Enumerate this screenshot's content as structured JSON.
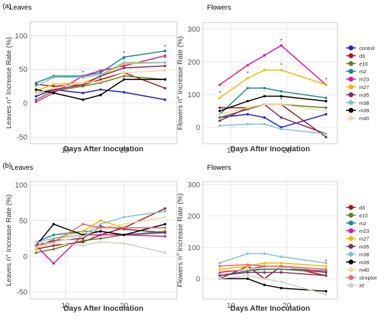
{
  "figure": {
    "label_a": "(a)",
    "label_b": "(b)",
    "significance_mark": "*"
  },
  "chart_data": [
    {
      "id": "a_leaves",
      "type": "line",
      "title": "Leaves",
      "xlabel": "Days After Inoculation",
      "ylabel": "Leaves n° Increase Rate (%)",
      "xlim": [
        4,
        29
      ],
      "ylim": [
        -60,
        120
      ],
      "xticks": [
        10,
        20
      ],
      "yticks": [
        -50,
        0,
        50,
        100
      ],
      "grid": true,
      "series": [
        {
          "name": "control",
          "color": "#1f1fd6",
          "x": [
            5,
            8,
            13,
            16,
            20,
            27
          ],
          "y": [
            10,
            20,
            15,
            20,
            16,
            5
          ]
        },
        {
          "name": "d3",
          "color": "#a01c1c",
          "x": [
            5,
            8,
            13,
            16,
            20,
            27
          ],
          "y": [
            28,
            25,
            27,
            35,
            45,
            22
          ]
        },
        {
          "name": "e10",
          "color": "#6b7a2a",
          "x": [
            5,
            8,
            13,
            16,
            20,
            27
          ],
          "y": [
            5,
            18,
            25,
            30,
            40,
            35
          ]
        },
        {
          "name": "m2",
          "color": "#1b8a8a",
          "x": [
            5,
            8,
            13,
            16,
            20,
            27
          ],
          "y": [
            30,
            40,
            40,
            45,
            68,
            77
          ]
        },
        {
          "name": "m23",
          "color": "#e0189a",
          "x": [
            5,
            8,
            13,
            16,
            20,
            27
          ],
          "y": [
            2,
            15,
            40,
            48,
            55,
            70
          ]
        },
        {
          "name": "m27",
          "color": "#f5b800",
          "x": [
            5,
            8,
            13,
            16,
            20,
            27
          ],
          "y": [
            18,
            28,
            30,
            40,
            58,
            60
          ]
        },
        {
          "name": "m35",
          "color": "#8b2a5a",
          "x": [
            5,
            8,
            13,
            16,
            20,
            27
          ],
          "y": [
            15,
            20,
            27,
            40,
            52,
            55
          ]
        },
        {
          "name": "m38",
          "color": "#7fc4d4",
          "x": [
            5,
            8,
            13,
            16,
            20,
            27
          ],
          "y": [
            25,
            38,
            38,
            42,
            60,
            60
          ]
        },
        {
          "name": "m39",
          "color": "#000000",
          "x": [
            5,
            8,
            13,
            16,
            20,
            27
          ],
          "y": [
            20,
            15,
            5,
            12,
            35,
            35
          ]
        },
        {
          "name": "m40",
          "color": "#f4d6a4",
          "x": [
            5,
            8,
            13,
            16,
            20,
            27
          ],
          "y": [
            15,
            22,
            30,
            32,
            45,
            48
          ]
        }
      ],
      "annotations": [
        {
          "text": "*",
          "x": 13,
          "y": 45
        },
        {
          "text": "*",
          "x": 20,
          "y": 74
        },
        {
          "text": "*",
          "x": 20,
          "y": 64
        },
        {
          "text": "*",
          "x": 27,
          "y": 83
        },
        {
          "text": "*",
          "x": 27,
          "y": 76
        },
        {
          "text": "*",
          "x": 27,
          "y": 66
        }
      ]
    },
    {
      "id": "a_flowers",
      "type": "line",
      "title": "Flowers",
      "xlabel": "Days After Inoculation",
      "ylabel": "Flowers n° Increase Rate (%)",
      "xlim": [
        5,
        29
      ],
      "ylim": [
        -50,
        320
      ],
      "xticks": [
        10,
        20
      ],
      "yticks": [
        0,
        100,
        200,
        300
      ],
      "grid": true,
      "series": [
        {
          "name": "control",
          "color": "#1f1fd6",
          "x": [
            8,
            13,
            16,
            19,
            27
          ],
          "y": [
            30,
            40,
            30,
            0,
            40
          ]
        },
        {
          "name": "d3",
          "color": "#a01c1c",
          "x": [
            8,
            13,
            16,
            19,
            27
          ],
          "y": [
            60,
            60,
            70,
            70,
            -30
          ]
        },
        {
          "name": "e10",
          "color": "#6b7a2a",
          "x": [
            8,
            13,
            16,
            19,
            27
          ],
          "y": [
            30,
            55,
            70,
            70,
            60
          ]
        },
        {
          "name": "m2",
          "color": "#1b8a8a",
          "x": [
            8,
            13,
            16,
            19,
            27
          ],
          "y": [
            40,
            120,
            120,
            110,
            90
          ]
        },
        {
          "name": "m23",
          "color": "#e0189a",
          "x": [
            8,
            13,
            16,
            19,
            27
          ],
          "y": [
            130,
            190,
            220,
            250,
            130
          ]
        },
        {
          "name": "m27",
          "color": "#f5b800",
          "x": [
            8,
            13,
            16,
            19,
            27
          ],
          "y": [
            90,
            150,
            175,
            175,
            130
          ]
        },
        {
          "name": "m35",
          "color": "#8b2a5a",
          "x": [
            8,
            13,
            16,
            19,
            27
          ],
          "y": [
            20,
            60,
            70,
            30,
            -20
          ]
        },
        {
          "name": "m38",
          "color": "#7fc4d4",
          "x": [
            8,
            13,
            16,
            19,
            27
          ],
          "y": [
            5,
            10,
            10,
            -5,
            -20
          ]
        },
        {
          "name": "m39",
          "color": "#000000",
          "x": [
            8,
            13,
            16,
            19,
            27
          ],
          "y": [
            50,
            80,
            95,
            95,
            80
          ]
        },
        {
          "name": "m40",
          "color": "#f4d6a4",
          "x": [
            8,
            13,
            16,
            19,
            27
          ],
          "y": [
            40,
            60,
            70,
            70,
            50
          ]
        }
      ],
      "annotations": [
        {
          "text": "*",
          "x": 8,
          "y": 105
        },
        {
          "text": "*",
          "x": 13,
          "y": 165
        },
        {
          "text": "*",
          "x": 19,
          "y": 265
        },
        {
          "text": "*",
          "x": 19,
          "y": 190
        },
        {
          "text": "*",
          "x": 19,
          "y": 85
        },
        {
          "text": "*",
          "x": 27,
          "y": 145
        }
      ]
    },
    {
      "id": "b_leaves",
      "type": "line",
      "title": "Leaves",
      "xlabel": "Days After Inoculation",
      "ylabel": "Leaves n° Increase Rate (%)",
      "xlim": [
        4,
        29
      ],
      "ylim": [
        -60,
        105
      ],
      "xticks": [
        10,
        20
      ],
      "yticks": [
        -50,
        0,
        50,
        100
      ],
      "grid": true,
      "series": [
        {
          "name": "d3",
          "color": "#a01c1c",
          "x": [
            5,
            8,
            13,
            16,
            20,
            27
          ],
          "y": [
            10,
            15,
            20,
            30,
            40,
            67
          ]
        },
        {
          "name": "e10",
          "color": "#6b7a2a",
          "x": [
            5,
            8,
            13,
            16,
            20,
            27
          ],
          "y": [
            5,
            10,
            22,
            25,
            30,
            35
          ]
        },
        {
          "name": "m2",
          "color": "#1b8a8a",
          "x": [
            5,
            8,
            13,
            16,
            20,
            27
          ],
          "y": [
            20,
            30,
            35,
            35,
            30,
            33
          ]
        },
        {
          "name": "m23",
          "color": "#e0189a",
          "x": [
            5,
            8,
            13,
            16,
            20,
            27
          ],
          "y": [
            15,
            -10,
            30,
            30,
            30,
            28
          ]
        },
        {
          "name": "m27",
          "color": "#f5b800",
          "x": [
            5,
            8,
            13,
            16,
            20,
            27
          ],
          "y": [
            10,
            25,
            35,
            50,
            40,
            40
          ]
        },
        {
          "name": "m35",
          "color": "#8b2a5a",
          "x": [
            5,
            8,
            13,
            16,
            20,
            27
          ],
          "y": [
            15,
            22,
            25,
            42,
            38,
            33
          ]
        },
        {
          "name": "m38",
          "color": "#7fc4d4",
          "x": [
            5,
            8,
            13,
            16,
            20,
            27
          ],
          "y": [
            20,
            25,
            30,
            45,
            55,
            63
          ]
        },
        {
          "name": "m39",
          "color": "#000000",
          "x": [
            5,
            8,
            13,
            16,
            20,
            27
          ],
          "y": [
            15,
            45,
            30,
            35,
            30,
            45
          ]
        },
        {
          "name": "m40",
          "color": "#f4d6a4",
          "x": [
            5,
            8,
            13,
            16,
            20,
            27
          ],
          "y": [
            12,
            20,
            28,
            40,
            45,
            55
          ]
        },
        {
          "name": "streptomycin",
          "color": "#e86a6a",
          "x": [
            5,
            8,
            13,
            16,
            20,
            27
          ],
          "y": [
            15,
            20,
            45,
            40,
            40,
            40
          ]
        },
        {
          "name": "Xf",
          "color": "#cfcfc4",
          "x": [
            5,
            8,
            13,
            16,
            20,
            27
          ],
          "y": [
            20,
            18,
            15,
            20,
            18,
            5
          ]
        }
      ],
      "annotations": []
    },
    {
      "id": "b_flowers",
      "type": "line",
      "title": "Flowers",
      "xlabel": "Days After Inoculation",
      "ylabel": "Flowers n° Increase Rate (%)",
      "xlim": [
        5,
        29
      ],
      "ylim": [
        -65,
        310
      ],
      "xticks": [
        10,
        20
      ],
      "yticks": [
        0,
        100,
        200,
        300
      ],
      "grid": true,
      "series": [
        {
          "name": "d3",
          "color": "#a01c1c",
          "x": [
            8,
            13,
            16,
            19,
            27
          ],
          "y": [
            0,
            40,
            0,
            40,
            10
          ]
        },
        {
          "name": "e10",
          "color": "#6b7a2a",
          "x": [
            8,
            13,
            16,
            19,
            27
          ],
          "y": [
            20,
            30,
            30,
            30,
            20
          ]
        },
        {
          "name": "m2",
          "color": "#1b8a8a",
          "x": [
            8,
            13,
            16,
            19,
            27
          ],
          "y": [
            10,
            25,
            30,
            30,
            25
          ]
        },
        {
          "name": "m23",
          "color": "#e0189a",
          "x": [
            8,
            13,
            16,
            19,
            27
          ],
          "y": [
            20,
            30,
            40,
            40,
            20
          ]
        },
        {
          "name": "m27",
          "color": "#f5b800",
          "x": [
            8,
            13,
            16,
            19,
            27
          ],
          "y": [
            30,
            40,
            50,
            50,
            40
          ]
        },
        {
          "name": "m35",
          "color": "#8b2a5a",
          "x": [
            8,
            13,
            16,
            19,
            27
          ],
          "y": [
            10,
            20,
            20,
            20,
            10
          ]
        },
        {
          "name": "m38",
          "color": "#7fc4d4",
          "x": [
            8,
            13,
            16,
            19,
            27
          ],
          "y": [
            50,
            80,
            80,
            70,
            50
          ]
        },
        {
          "name": "m39",
          "color": "#000000",
          "x": [
            8,
            13,
            16,
            19,
            27
          ],
          "y": [
            0,
            0,
            -20,
            -30,
            -40
          ]
        },
        {
          "name": "m40",
          "color": "#f4d6a4",
          "x": [
            8,
            13,
            16,
            19,
            27
          ],
          "y": [
            25,
            30,
            35,
            35,
            30
          ]
        },
        {
          "name": "streptomycin",
          "color": "#e86a6a",
          "x": [
            8,
            13,
            16,
            19,
            27
          ],
          "y": [
            40,
            45,
            40,
            40,
            30
          ]
        },
        {
          "name": "Xf",
          "color": "#cfcfc4",
          "x": [
            8,
            13,
            16,
            19,
            27
          ],
          "y": [
            0,
            10,
            0,
            -10,
            -50
          ]
        }
      ],
      "annotations": [
        {
          "text": "*",
          "x": 27,
          "y": 55
        },
        {
          "text": "*",
          "x": 27,
          "y": 15
        }
      ]
    }
  ]
}
